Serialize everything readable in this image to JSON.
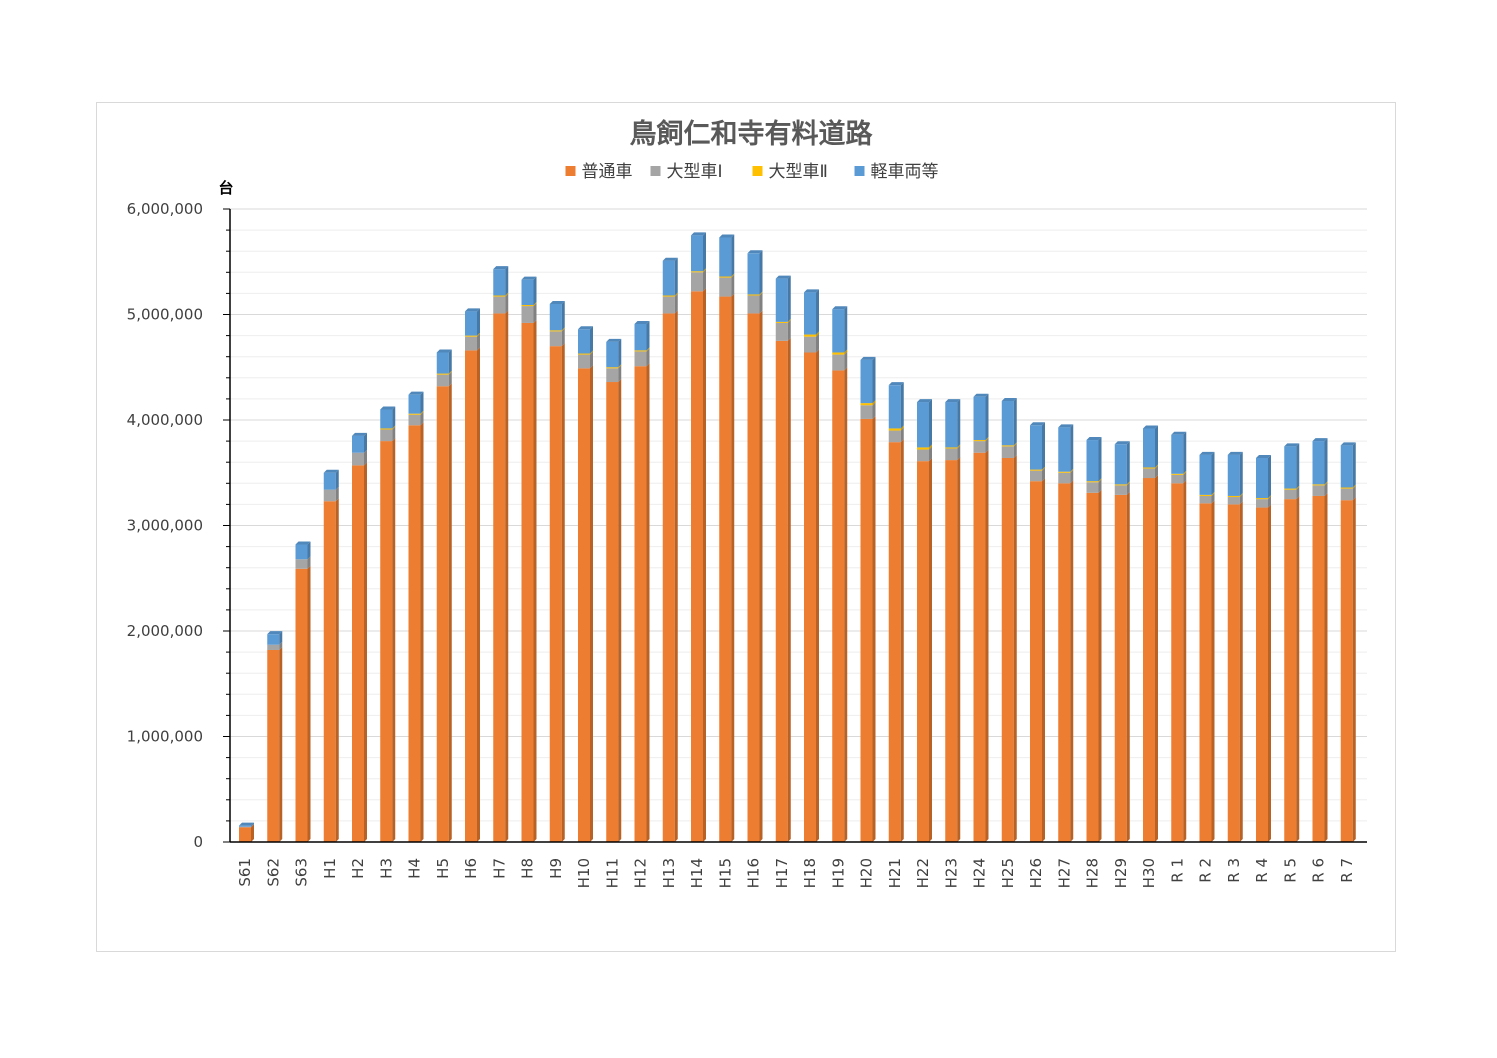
{
  "chart_data": {
    "type": "bar",
    "stacked": true,
    "title": "鳥飼仁和寺有料道路",
    "unit_label": "台",
    "ylim": [
      0,
      6000000
    ],
    "y_ticks": [
      "0",
      "1,000,000",
      "2,000,000",
      "3,000,000",
      "4,000,000",
      "5,000,000",
      "6,000,000"
    ],
    "y_tick_values": [
      0,
      1000000,
      2000000,
      3000000,
      4000000,
      5000000,
      6000000
    ],
    "grid": true,
    "legend_position": "top",
    "categories": [
      "S61",
      "S62",
      "S63",
      "H1",
      "H2",
      "H3",
      "H4",
      "H5",
      "H6",
      "H7",
      "H8",
      "H9",
      "H10",
      "H11",
      "H12",
      "H13",
      "H14",
      "H15",
      "H16",
      "H17",
      "H18",
      "H19",
      "H20",
      "H21",
      "H22",
      "H23",
      "H24",
      "H25",
      "H26",
      "H27",
      "H28",
      "H29",
      "H30",
      "R 1",
      "R 2",
      "R 3",
      "R 4",
      "R 5",
      "R 6",
      "R 7"
    ],
    "series": [
      {
        "name": "普通車",
        "color": "#ED7D31",
        "values": [
          140000,
          1820000,
          2590000,
          3230000,
          3570000,
          3800000,
          3950000,
          4320000,
          4660000,
          5010000,
          4920000,
          4700000,
          4490000,
          4360000,
          4510000,
          5010000,
          5220000,
          5170000,
          5010000,
          4750000,
          4640000,
          4470000,
          4010000,
          3790000,
          3610000,
          3620000,
          3690000,
          3640000,
          3420000,
          3400000,
          3310000,
          3290000,
          3450000,
          3400000,
          3210000,
          3200000,
          3170000,
          3250000,
          3280000,
          3240000
        ]
      },
      {
        "name": "大型車Ⅰ",
        "color": "#A5A5A5",
        "values": [
          5000,
          50000,
          90000,
          110000,
          120000,
          110000,
          100000,
          110000,
          130000,
          160000,
          160000,
          140000,
          130000,
          130000,
          140000,
          160000,
          180000,
          180000,
          170000,
          170000,
          150000,
          150000,
          130000,
          110000,
          110000,
          110000,
          110000,
          110000,
          100000,
          100000,
          100000,
          90000,
          90000,
          80000,
          70000,
          70000,
          80000,
          90000,
          100000,
          110000
        ]
      },
      {
        "name": "大型車Ⅱ",
        "color": "#FFC000",
        "values": [
          0,
          0,
          0,
          0,
          0,
          10000,
          10000,
          10000,
          10000,
          10000,
          10000,
          10000,
          10000,
          10000,
          10000,
          10000,
          10000,
          10000,
          10000,
          10000,
          20000,
          20000,
          20000,
          20000,
          20000,
          10000,
          10000,
          10000,
          10000,
          10000,
          10000,
          10000,
          10000,
          10000,
          10000,
          10000,
          10000,
          10000,
          10000,
          10000
        ]
      },
      {
        "name": "軽車両等",
        "color": "#5B9BD5",
        "values": [
          10000,
          100000,
          140000,
          160000,
          160000,
          180000,
          180000,
          200000,
          230000,
          250000,
          240000,
          250000,
          230000,
          240000,
          250000,
          330000,
          340000,
          370000,
          390000,
          410000,
          400000,
          410000,
          410000,
          410000,
          430000,
          430000,
          410000,
          420000,
          420000,
          420000,
          390000,
          380000,
          370000,
          370000,
          380000,
          390000,
          380000,
          400000,
          410000,
          400000
        ]
      }
    ]
  }
}
